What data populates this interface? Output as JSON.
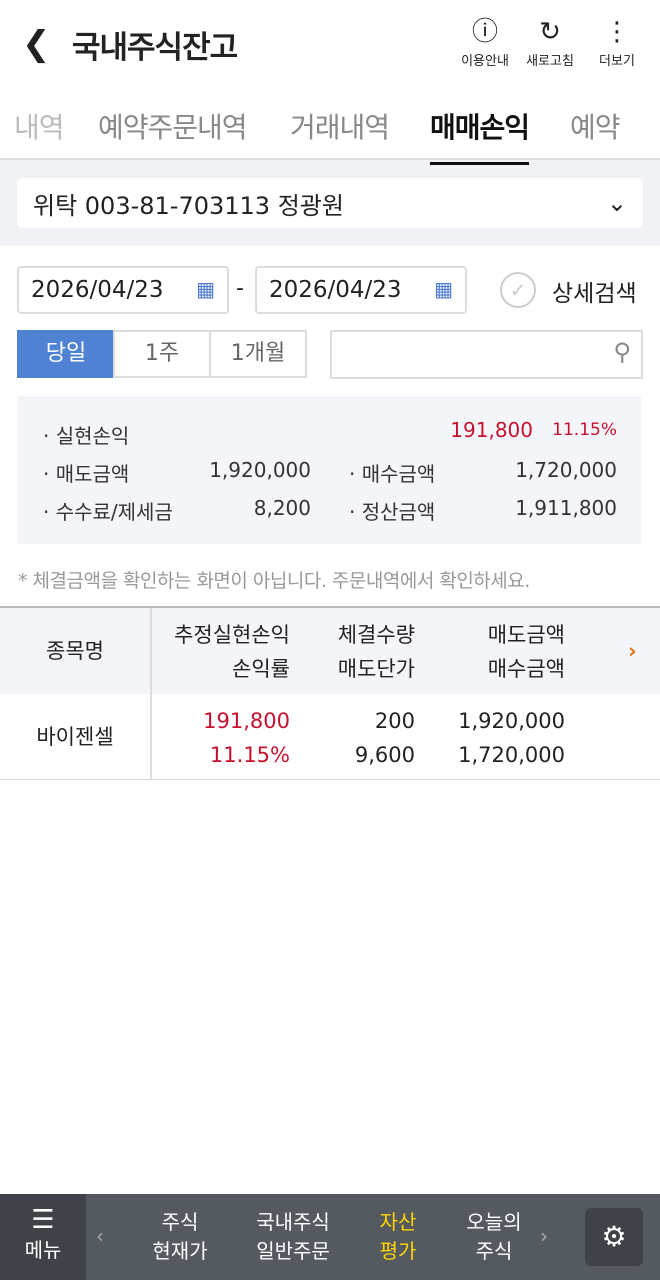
{
  "header": {
    "title": "국내주식잔고",
    "guide": "이용안내",
    "refresh": "새로고침",
    "more": "더보기"
  },
  "tabs": [
    "내역",
    "예약주문내역",
    "거래내역",
    "매매손익",
    "예약"
  ],
  "account": "위탁 003-81-703113 정광원",
  "dates": {
    "from": "2026/04/23",
    "to": "2026/04/23",
    "sep": "-",
    "detail_search": "상세검색"
  },
  "periods": [
    "당일",
    "1주",
    "1개월"
  ],
  "search": {
    "placeholder": ""
  },
  "summary": {
    "realized_label": "실현손익",
    "realized": "191,800",
    "realized_rate": "11.15%",
    "sell_label": "매도금액",
    "sell": "1,920,000",
    "buy_label": "매수금액",
    "buy": "1,720,000",
    "fee_label": "수수료/제세금",
    "fee": "8,200",
    "settle_label": "정산금액",
    "settle": "1,911,800"
  },
  "note": "* 체결금액을 확인하는 화면이 아닙니다. 주문내역에서 확인하세요.",
  "table": {
    "headers": {
      "name": "종목명",
      "pl": "추정실현손익",
      "rate": "손익률",
      "qty": "체결수량",
      "sellprice": "매도단가",
      "sellamt": "매도금액",
      "buyamt": "매수금액"
    },
    "rows": [
      {
        "name": "바이젠셀",
        "pl": "191,800",
        "rate": "11.15%",
        "qty": "200",
        "sellprice": "9,600",
        "sellamt": "1,920,000",
        "buyamt": "1,720,000"
      }
    ]
  },
  "bottom_nav": {
    "menu": "메뉴",
    "items": [
      [
        "주식",
        "현재가"
      ],
      [
        "국내주식",
        "일반주문"
      ],
      [
        "자산",
        "평가"
      ],
      [
        "오늘의",
        "주식"
      ]
    ],
    "active_color": "#ffd600"
  }
}
